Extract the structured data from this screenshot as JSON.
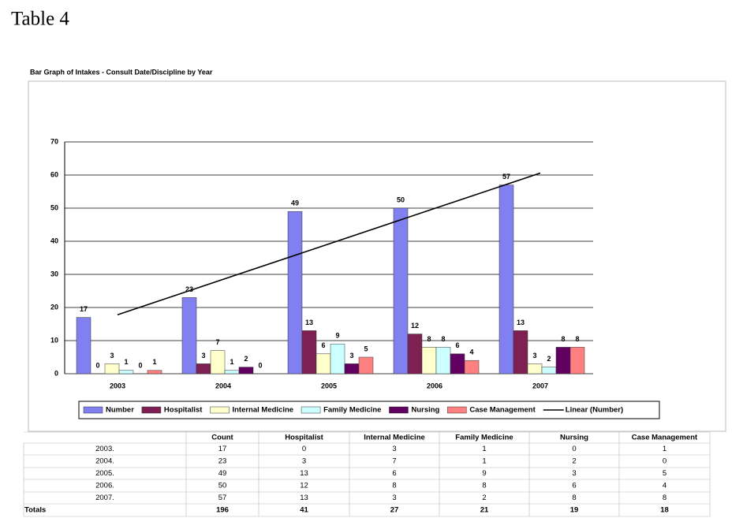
{
  "heading": "Table 4",
  "chart_data": {
    "type": "bar",
    "title": "Bar Graph of Intakes  - Consult Date/Discipline by Year",
    "categories": [
      "2003",
      "2004",
      "2005",
      "2006",
      "2007"
    ],
    "series": [
      {
        "name": "Number",
        "color": "#8080f0",
        "values": [
          17,
          23,
          49,
          50,
          57
        ]
      },
      {
        "name": "Hospitalist",
        "color": "#7f2052",
        "values": [
          0,
          3,
          13,
          12,
          13
        ]
      },
      {
        "name": "Internal Medicine",
        "color": "#ffffcc",
        "values": [
          3,
          7,
          6,
          8,
          3
        ]
      },
      {
        "name": "Family Medicine",
        "color": "#ccffff",
        "values": [
          1,
          1,
          9,
          8,
          2
        ]
      },
      {
        "name": "Nursing",
        "color": "#620062",
        "values": [
          0,
          2,
          3,
          6,
          8
        ]
      },
      {
        "name": "Case Management",
        "color": "#ff8080",
        "values": [
          1,
          0,
          5,
          4,
          8
        ]
      },
      {
        "name": "Linear (Number)",
        "type": "line",
        "color": "#000000",
        "values": [
          17.8,
          28.5,
          39.2,
          49.9,
          60.6
        ]
      }
    ],
    "ylim": [
      0,
      70
    ],
    "yticks": [
      0,
      10,
      20,
      30,
      40,
      50,
      60,
      70
    ],
    "grid": true,
    "legend": "bottom"
  },
  "table": {
    "columns": [
      "Count",
      "Hospitalist",
      "Internal Medicine",
      "Family Medicine",
      "Nursing",
      "Case Management"
    ],
    "rows": [
      {
        "label": "2003.",
        "cells": [
          17,
          0,
          3,
          1,
          0,
          1
        ]
      },
      {
        "label": "2004.",
        "cells": [
          23,
          3,
          7,
          1,
          2,
          0
        ]
      },
      {
        "label": "2005.",
        "cells": [
          49,
          13,
          6,
          9,
          3,
          5
        ]
      },
      {
        "label": "2006.",
        "cells": [
          50,
          12,
          8,
          8,
          6,
          4
        ]
      },
      {
        "label": "2007.",
        "cells": [
          57,
          13,
          3,
          2,
          8,
          8
        ]
      }
    ],
    "totals": {
      "label": "Totals",
      "cells": [
        196,
        41,
        27,
        21,
        19,
        18
      ]
    }
  }
}
